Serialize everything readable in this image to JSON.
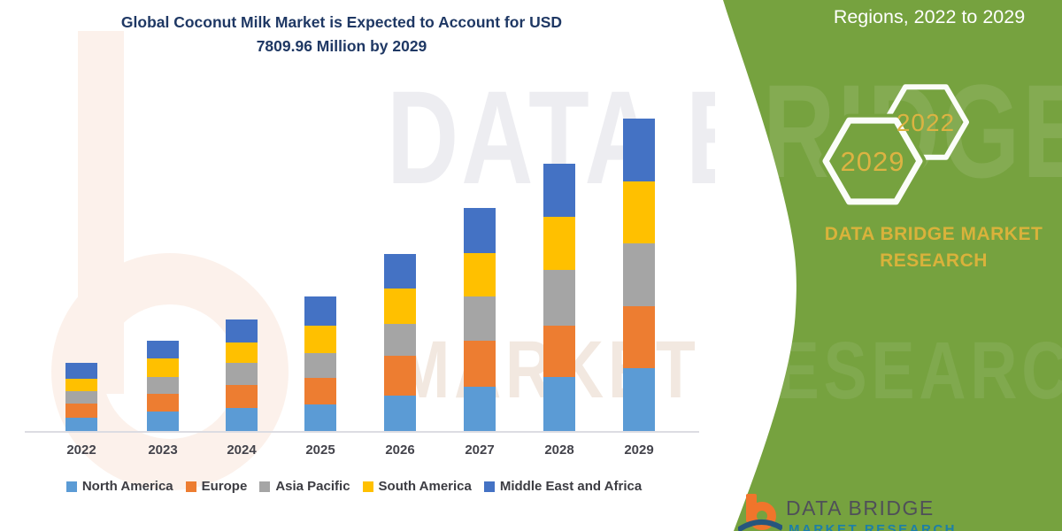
{
  "header": {
    "title_line1": "Global Coconut Milk Market is Expected to Account for USD",
    "title_line2": "7809.96 Million by 2029"
  },
  "side_panel": {
    "heading": "Regions, 2022 to 2029",
    "hexagon_large_year": "2029",
    "hexagon_small_year": "2022",
    "brand_line1": "DATA BRIDGE MARKET",
    "brand_line2": "RESEARCH"
  },
  "watermarks": {
    "line1": "DATA BRIDGE",
    "line2": "MARKET RESEARCH"
  },
  "footer": {
    "brand_name": "DATA BRIDGE",
    "brand_sub": "MARKET RESEARCH"
  },
  "colors": {
    "green_panel": "#76A23F",
    "title_text": "#1F3864",
    "gold_text": "#D9B23B",
    "axis_text": "#43434b",
    "north_america": "#5B9BD5",
    "europe": "#ED7D31",
    "asia_pacific": "#A5A5A5",
    "south_america": "#FFC000",
    "middle_east_africa": "#4472C4"
  },
  "chart_data": {
    "type": "bar",
    "stacked": true,
    "title": "Global Coconut Milk Market is Expected to Account for USD 7809.96 Million by 2029",
    "units": "USD Million",
    "categories": [
      "2022",
      "2023",
      "2024",
      "2025",
      "2026",
      "2027",
      "2028",
      "2029"
    ],
    "series": [
      {
        "name": "North America",
        "color": "#5B9BD5",
        "values": [
          341,
          481,
          569,
          664,
          886,
          1107,
          1344,
          1565
        ]
      },
      {
        "name": "Europe",
        "color": "#ED7D31",
        "values": [
          345,
          454,
          576,
          664,
          996,
          1145,
          1300,
          1550
        ]
      },
      {
        "name": "Asia Pacific",
        "color": "#A5A5A5",
        "values": [
          310,
          410,
          554,
          629,
          797,
          1107,
          1380,
          1588
        ]
      },
      {
        "name": "South America",
        "color": "#FFC000",
        "values": [
          319,
          476,
          516,
          686,
          886,
          1092,
          1329,
          1535
        ]
      },
      {
        "name": "Middle East and Africa",
        "color": "#4472C4",
        "values": [
          383,
          443,
          569,
          715,
          864,
          1123,
          1329,
          1571.96
        ]
      }
    ],
    "totals": [
      1698,
      2264,
      2784,
      3358,
      4429,
      5574,
      6682,
      7809.96
    ],
    "y_axis_visible": false,
    "gridlines": false,
    "legend_position": "bottom"
  }
}
